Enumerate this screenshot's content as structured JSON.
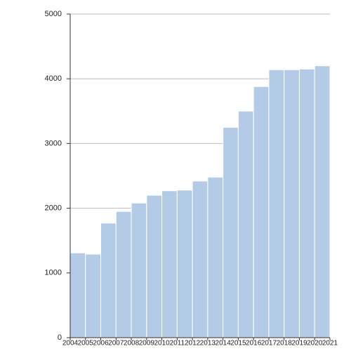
{
  "chart_data": {
    "type": "histogram",
    "bins": [
      2004,
      2005,
      2006,
      2007,
      2008,
      2009,
      2010,
      2011,
      2012,
      2013,
      2014,
      2015,
      2016,
      2017,
      2018,
      2019,
      2020,
      2021
    ],
    "values": [
      1310,
      1290,
      1770,
      1950,
      2080,
      2200,
      2270,
      2280,
      2420,
      2480,
      3250,
      3500,
      3880,
      4140,
      4140,
      4150,
      4200
    ],
    "color": "#b3cbe6",
    "ylim": [
      0,
      5000
    ],
    "yticks": [
      0,
      1000,
      2000,
      3000,
      4000,
      5000
    ],
    "grid": true
  }
}
